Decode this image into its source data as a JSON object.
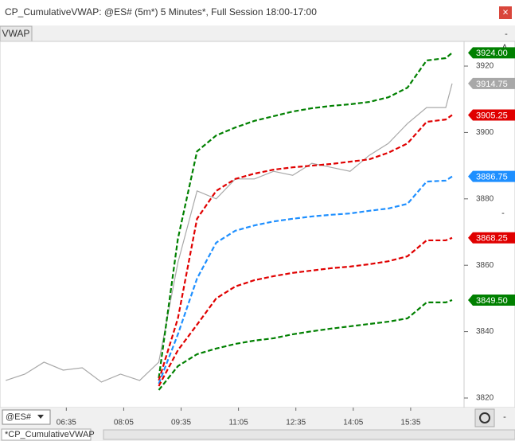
{
  "window": {
    "title": "CP_CumulativeVWAP: @ES# (5m*) 5 Minutes*, Full Session 18:00-17:00",
    "close": "×"
  },
  "toolbar": {
    "tab": "VWAP",
    "scale_button": "A",
    "minus_top": "-",
    "minus_mid": "-",
    "minus_bottom": "-"
  },
  "footer": {
    "symbol": "@ES#",
    "workspace_tab": "*CP_CumulativeVWAP"
  },
  "chart_data": {
    "type": "line",
    "x": [
      "05:00",
      "05:30",
      "06:00",
      "06:30",
      "07:00",
      "07:30",
      "08:00",
      "08:30",
      "09:00",
      "09:30",
      "10:00",
      "10:30",
      "11:00",
      "11:30",
      "12:00",
      "12:30",
      "13:00",
      "13:30",
      "14:00",
      "14:30",
      "15:00",
      "15:30",
      "16:00",
      "16:30",
      "16:40"
    ],
    "xlim": [
      "04:51",
      "16:45"
    ],
    "xticks": [
      "06:35",
      "08:05",
      "09:35",
      "11:05",
      "12:35",
      "14:05",
      "15:35"
    ],
    "ylim": [
      3817.6,
      3927.2
    ],
    "yticks": [
      3820,
      3840,
      3860,
      3880,
      3900,
      3920
    ],
    "series": [
      {
        "color": "#a8a8a8",
        "values": [
          3825.3,
          3827.2,
          3830.8,
          3828.4,
          3829.1,
          3824.8,
          3827.2,
          3825.3,
          3830.8,
          3860.8,
          3882.4,
          3880,
          3886,
          3886,
          3888.3,
          3887.1,
          3890.7,
          3889.5,
          3888.3,
          3893.1,
          3896.7,
          3902.7,
          3907.5,
          3907.5,
          3914.75
        ],
        "value_labels": [
          null,
          null,
          null,
          null,
          null,
          null,
          null,
          null,
          null,
          null,
          null,
          null,
          null,
          null,
          null,
          null,
          null,
          null,
          null,
          null,
          null,
          null,
          null,
          null,
          "3914.75"
        ]
      },
      {
        "color": "#008000",
        "values": [
          null,
          null,
          null,
          null,
          null,
          null,
          null,
          null,
          3826,
          3868,
          3894.3,
          3899.1,
          3901.5,
          3903.5,
          3904.9,
          3906.3,
          3907.3,
          3908,
          3908.5,
          3909.2,
          3910.6,
          3913.5,
          3921.7,
          3922.4,
          3924
        ],
        "value_labels": [
          null,
          null,
          null,
          null,
          null,
          null,
          null,
          null,
          null,
          null,
          null,
          null,
          null,
          null,
          null,
          null,
          null,
          null,
          null,
          null,
          null,
          null,
          null,
          null,
          "3924.00"
        ]
      },
      {
        "color": "#e00000",
        "values": [
          null,
          null,
          null,
          null,
          null,
          null,
          null,
          null,
          3825.3,
          3844,
          3874,
          3882.4,
          3886,
          3887.6,
          3888.8,
          3889.5,
          3890,
          3890.5,
          3891.2,
          3891.9,
          3893.9,
          3896.7,
          3903.2,
          3903.9,
          3905.25
        ],
        "value_labels": [
          null,
          null,
          null,
          null,
          null,
          null,
          null,
          null,
          null,
          null,
          null,
          null,
          null,
          null,
          null,
          null,
          null,
          null,
          null,
          null,
          null,
          null,
          null,
          null,
          "3905.25"
        ]
      },
      {
        "color": "#1e8fff",
        "values": [
          null,
          null,
          null,
          null,
          null,
          null,
          null,
          null,
          3824.3,
          3839.2,
          3856,
          3866.8,
          3870.4,
          3872,
          3873.2,
          3874,
          3874.7,
          3875.2,
          3875.6,
          3876.4,
          3877.1,
          3878.5,
          3885.2,
          3885.5,
          3886.75
        ],
        "value_labels": [
          null,
          null,
          null,
          null,
          null,
          null,
          null,
          null,
          null,
          null,
          null,
          null,
          null,
          null,
          null,
          null,
          null,
          null,
          null,
          null,
          null,
          null,
          null,
          null,
          "3886.75"
        ]
      },
      {
        "color": "#e00000",
        "values": [
          null,
          null,
          null,
          null,
          null,
          null,
          null,
          null,
          3823.6,
          3834.4,
          3842.1,
          3850,
          3853.6,
          3855.5,
          3856.7,
          3857.7,
          3858.4,
          3859.1,
          3859.6,
          3860.3,
          3861.2,
          3862.7,
          3867.5,
          3867.5,
          3868.25
        ],
        "value_labels": [
          null,
          null,
          null,
          null,
          null,
          null,
          null,
          null,
          null,
          null,
          null,
          null,
          null,
          null,
          null,
          null,
          null,
          null,
          null,
          null,
          null,
          null,
          null,
          null,
          "3868.25"
        ]
      },
      {
        "color": "#008000",
        "values": [
          null,
          null,
          null,
          null,
          null,
          null,
          null,
          null,
          3822.4,
          3829.6,
          3833.2,
          3834.9,
          3836.3,
          3837.3,
          3838,
          3839.2,
          3840.1,
          3840.9,
          3841.6,
          3842.3,
          3843,
          3844,
          3848.8,
          3848.8,
          3849.5
        ],
        "value_labels": [
          null,
          null,
          null,
          null,
          null,
          null,
          null,
          null,
          null,
          null,
          null,
          null,
          null,
          null,
          null,
          null,
          null,
          null,
          null,
          null,
          null,
          null,
          null,
          null,
          "3849.50"
        ]
      }
    ]
  }
}
